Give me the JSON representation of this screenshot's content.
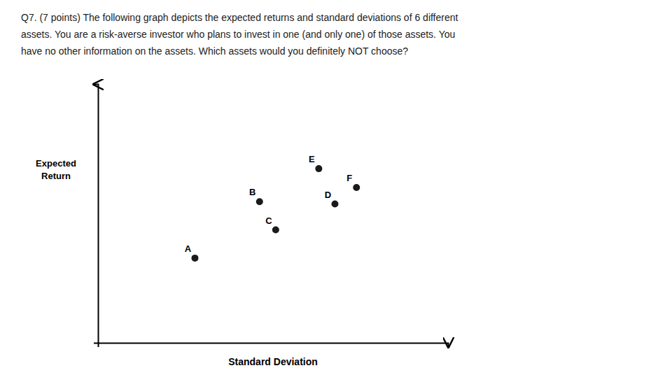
{
  "chart_data": {
    "type": "scatter",
    "title": [
      "Q7. (7 points) The following graph depicts the expected returns and standard deviations of 6 different",
      "assets.  You are a risk-averse investor who plans to invest in one (and only one) of those assets.  You",
      "have no other information on the assets.  Which assets would you definitely NOT choose?"
    ],
    "xlabel": "Standard Deviation",
    "ylabel": [
      "Expected",
      "Return"
    ],
    "categories": [
      "A",
      "B",
      "C",
      "D",
      "E",
      "F"
    ],
    "x": [
      1.8,
      3.0,
      3.3,
      4.4,
      4.1,
      4.8
    ],
    "values": [
      1.8,
      3.0,
      2.4,
      2.95,
      3.7,
      3.3
    ],
    "color": "#1a1a1a",
    "xlim": [
      0,
      6.5
    ],
    "ylim": [
      0,
      5.5
    ],
    "xticks": [],
    "yticks": [],
    "tick_labels": false,
    "grid": false,
    "data_labels": false
  }
}
